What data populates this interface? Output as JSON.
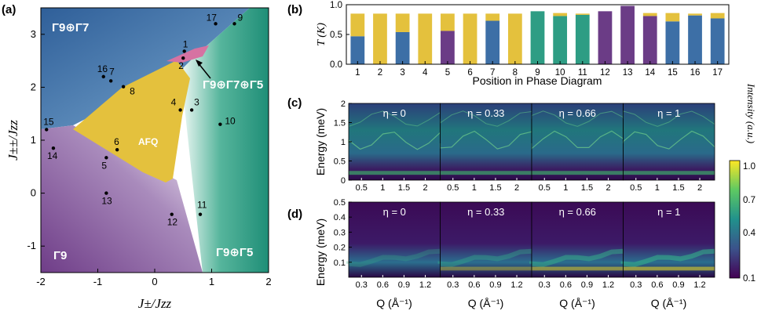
{
  "panel_labels": {
    "a": "(a)",
    "b": "(b)",
    "c": "(c)",
    "d": "(d)"
  },
  "chart_data": [
    {
      "id": "a",
      "type": "scatter",
      "title": "",
      "xlabel": "J±/Jzz",
      "ylabel": "J±±/Jzz",
      "xlim": [
        -2,
        2
      ],
      "ylim": [
        -1.5,
        3.5
      ],
      "xticks": [
        -2,
        -1,
        0,
        1,
        2
      ],
      "yticks": [
        -1,
        0,
        1,
        2,
        3
      ],
      "regions": [
        {
          "name": "Γ9⊕Γ7",
          "color": "#3d6fa6"
        },
        {
          "name": "Γ9⊕Γ7⊕Γ5",
          "color": "#2e9d84"
        },
        {
          "name": "Γ9⊕Γ5",
          "color": "#2e9d84"
        },
        {
          "name": "Γ9",
          "color": "#7a4a8f"
        },
        {
          "name": "AFQ",
          "color": "#e4c13d"
        }
      ],
      "points": [
        {
          "label": "1",
          "x": 0.52,
          "y": 2.68
        },
        {
          "label": "2",
          "x": 0.5,
          "y": 2.55
        },
        {
          "label": "3",
          "x": 0.65,
          "y": 1.57
        },
        {
          "label": "4",
          "x": 0.45,
          "y": 1.57
        },
        {
          "label": "5",
          "x": -0.85,
          "y": 0.67
        },
        {
          "label": "6",
          "x": -0.66,
          "y": 0.82
        },
        {
          "label": "7",
          "x": -0.77,
          "y": 2.12
        },
        {
          "label": "8",
          "x": -0.55,
          "y": 2.01
        },
        {
          "label": "9",
          "x": 1.4,
          "y": 3.2
        },
        {
          "label": "10",
          "x": 1.15,
          "y": 1.3
        },
        {
          "label": "11",
          "x": 0.8,
          "y": -0.4
        },
        {
          "label": "12",
          "x": 0.3,
          "y": -0.4
        },
        {
          "label": "13",
          "x": -0.85,
          "y": 0.0
        },
        {
          "label": "14",
          "x": -1.78,
          "y": 0.85
        },
        {
          "label": "15",
          "x": -1.9,
          "y": 1.2
        },
        {
          "label": "16",
          "x": -0.9,
          "y": 2.2
        },
        {
          "label": "17",
          "x": 1.07,
          "y": 3.2
        }
      ]
    },
    {
      "id": "b",
      "type": "bar",
      "xlabel": "Position in Phase Diagram",
      "ylabel": "T (K)",
      "ylim": [
        0,
        1.0
      ],
      "yticks": [
        0,
        0.5,
        1.0
      ],
      "categories": [
        "1",
        "2",
        "3",
        "4",
        "5",
        "6",
        "7",
        "8",
        "9",
        "10",
        "11",
        "12",
        "13",
        "14",
        "15",
        "16",
        "17"
      ],
      "series": [
        {
          "name": "Γ9⊕Γ7",
          "color": "#3d6fa6",
          "values": [
            0.47,
            0,
            0.54,
            0,
            0,
            0,
            0.73,
            0,
            0,
            0,
            0,
            0,
            0,
            0,
            0.72,
            0.82,
            0.77
          ]
        },
        {
          "name": "Γ9",
          "color": "#6b3c86",
          "values": [
            0,
            0,
            0,
            0,
            0.56,
            0,
            0,
            0,
            0,
            0,
            0,
            0.89,
            0.98,
            0.81,
            0,
            0,
            0
          ]
        },
        {
          "name": "Γ9⊕Γ5",
          "color": "#2e9d84",
          "values": [
            0,
            0,
            0,
            0,
            0,
            0,
            0,
            0,
            0.89,
            0.81,
            0.83,
            0,
            0,
            0,
            0,
            0,
            0
          ]
        },
        {
          "name": "AFQ",
          "color": "#e4c13d",
          "values": [
            0.38,
            0.85,
            0.31,
            0.85,
            0.29,
            0.85,
            0.12,
            0.85,
            0,
            0.05,
            0.02,
            0,
            0,
            0.05,
            0.14,
            0.03,
            0.09
          ]
        }
      ]
    },
    {
      "id": "c",
      "type": "heatmap",
      "ylabel": "Energy (meV)",
      "ylim": [
        0,
        2
      ],
      "yticks": [
        "0",
        "0.5",
        "1",
        "1.5",
        "2"
      ],
      "xticks": [
        "0.5",
        "1",
        "1.5",
        "2"
      ],
      "panels": [
        "η = 0",
        "η = 0.33",
        "η = 0.66",
        "η = 1"
      ]
    },
    {
      "id": "d",
      "type": "heatmap",
      "ylabel": "Energy (meV)",
      "ylim": [
        0,
        0.5
      ],
      "yticks": [
        "0.1",
        "0.2",
        "0.3",
        "0.4",
        "0.5"
      ],
      "xticks": [
        "0.3",
        "0.6",
        "0.9",
        "1.2"
      ],
      "xlabel": "Q (Å⁻¹)",
      "panels": [
        "η = 0",
        "η = 0.33",
        "η = 0.66",
        "η = 1"
      ]
    },
    {
      "id": "colorbar",
      "type": "colorbar",
      "label": "Intensity (a.u.)",
      "ticks": [
        "1.0",
        "0.7",
        "0.4",
        "0.1"
      ]
    }
  ]
}
